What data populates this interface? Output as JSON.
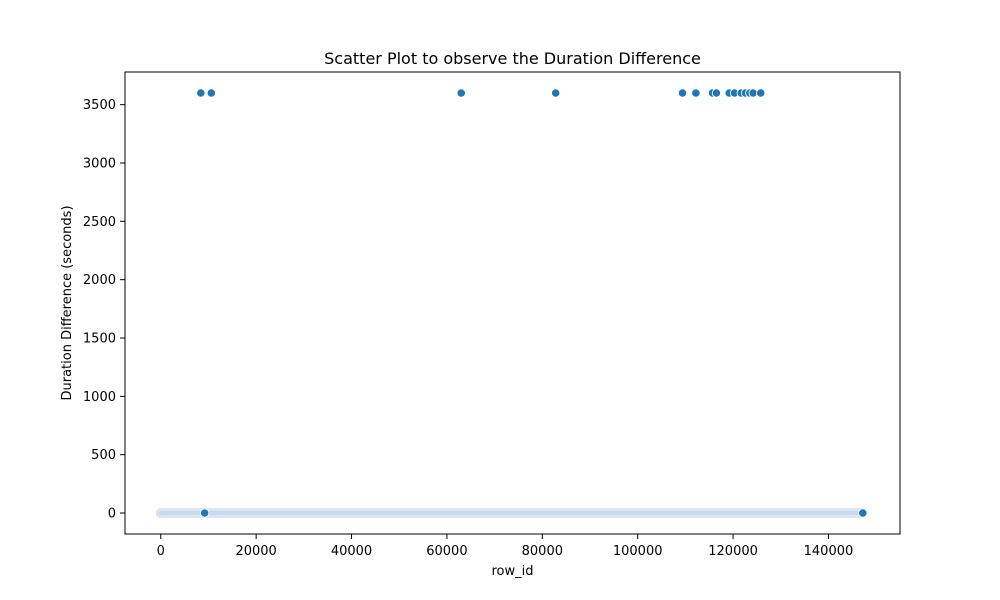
{
  "chart_data": {
    "type": "scatter",
    "title": "Scatter Plot to observe the Duration Difference",
    "xlabel": "row_id",
    "ylabel": "Duration Difference (seconds)",
    "xlim": [
      -7500,
      155000
    ],
    "ylim": [
      -180,
      3780
    ],
    "xticks": [
      0,
      20000,
      40000,
      60000,
      80000,
      100000,
      120000,
      140000
    ],
    "yticks": [
      0,
      500,
      1000,
      1500,
      2000,
      2500,
      3000,
      3500
    ],
    "grid": false,
    "marker_color": "#1f77b4",
    "dense_band": {
      "x_range": [
        0,
        147000
      ],
      "y": 0
    },
    "points": [
      {
        "x": 8400,
        "y": 3600
      },
      {
        "x": 10600,
        "y": 3600
      },
      {
        "x": 63000,
        "y": 3600
      },
      {
        "x": 82800,
        "y": 3600
      },
      {
        "x": 109400,
        "y": 3600
      },
      {
        "x": 112200,
        "y": 3600
      },
      {
        "x": 115700,
        "y": 3600
      },
      {
        "x": 116500,
        "y": 3600
      },
      {
        "x": 119200,
        "y": 3600
      },
      {
        "x": 120300,
        "y": 3600
      },
      {
        "x": 121700,
        "y": 3600
      },
      {
        "x": 122600,
        "y": 3600
      },
      {
        "x": 123500,
        "y": 3600
      },
      {
        "x": 124200,
        "y": 3600
      },
      {
        "x": 125800,
        "y": 3600
      },
      {
        "x": 9200,
        "y": 0
      },
      {
        "x": 147200,
        "y": 0
      }
    ]
  }
}
